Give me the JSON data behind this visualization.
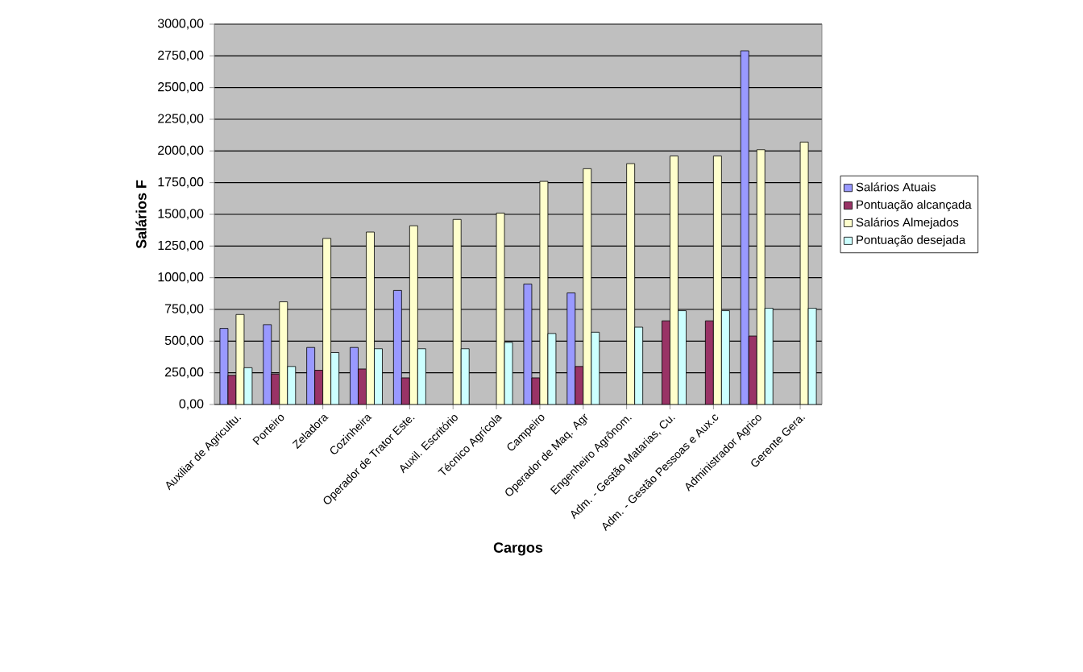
{
  "chart_data": {
    "type": "bar",
    "xlabel": "Cargos",
    "ylabel": "Salários F",
    "categories": [
      "Auxiliar de Agricultu.",
      "Porteiro",
      "Zeladora",
      "Cozinheira",
      "Operador de Trator Este.",
      "Auxil. Escritório",
      "Técnico Agrícola",
      "Campeiro",
      "Operador de Maq. Agr",
      "Engenheiro Agrônom.",
      "Adm. - Gestão Matarias, Cu.",
      "Adm. - Gestão Pessoas e Aux.c",
      "Administrador Agrico",
      "Gerente Gera."
    ],
    "series": [
      {
        "name": "Salários Atuais",
        "color": "#9999ff",
        "values": [
          600,
          630,
          450,
          450,
          900,
          null,
          null,
          950,
          880,
          null,
          null,
          null,
          2790,
          null
        ]
      },
      {
        "name": "Pontuação alcançada",
        "color": "#993366",
        "values": [
          230,
          240,
          270,
          280,
          210,
          null,
          null,
          210,
          300,
          null,
          660,
          660,
          540,
          null
        ]
      },
      {
        "name": "Salários Almejados",
        "color": "#ffffcc",
        "values": [
          710,
          810,
          1310,
          1360,
          1410,
          1460,
          1510,
          1760,
          1860,
          1900,
          1960,
          1960,
          2010,
          2070
        ]
      },
      {
        "name": "Pontuação desejada",
        "color": "#ccffff",
        "values": [
          290,
          300,
          410,
          440,
          440,
          440,
          490,
          560,
          570,
          610,
          740,
          740,
          760,
          760
        ]
      }
    ],
    "ylim": [
      0,
      3000
    ],
    "yticks": [
      {
        "value": 0,
        "label": "0,00"
      },
      {
        "value": 250,
        "label": "250,00"
      },
      {
        "value": 500,
        "label": "500,00"
      },
      {
        "value": 750,
        "label": "750,00"
      },
      {
        "value": 1000,
        "label": "1000,00"
      },
      {
        "value": 1250,
        "label": "1250,00"
      },
      {
        "value": 1500,
        "label": "1500,00"
      },
      {
        "value": 1750,
        "label": "1750,00"
      },
      {
        "value": 2000,
        "label": "2000,00"
      },
      {
        "value": 2250,
        "label": "2250,00"
      },
      {
        "value": 2500,
        "label": "2500,00"
      },
      {
        "value": 2750,
        "label": "2750,00"
      },
      {
        "value": 3000,
        "label": "3000,00"
      }
    ],
    "grid": "y",
    "legend": "right"
  }
}
